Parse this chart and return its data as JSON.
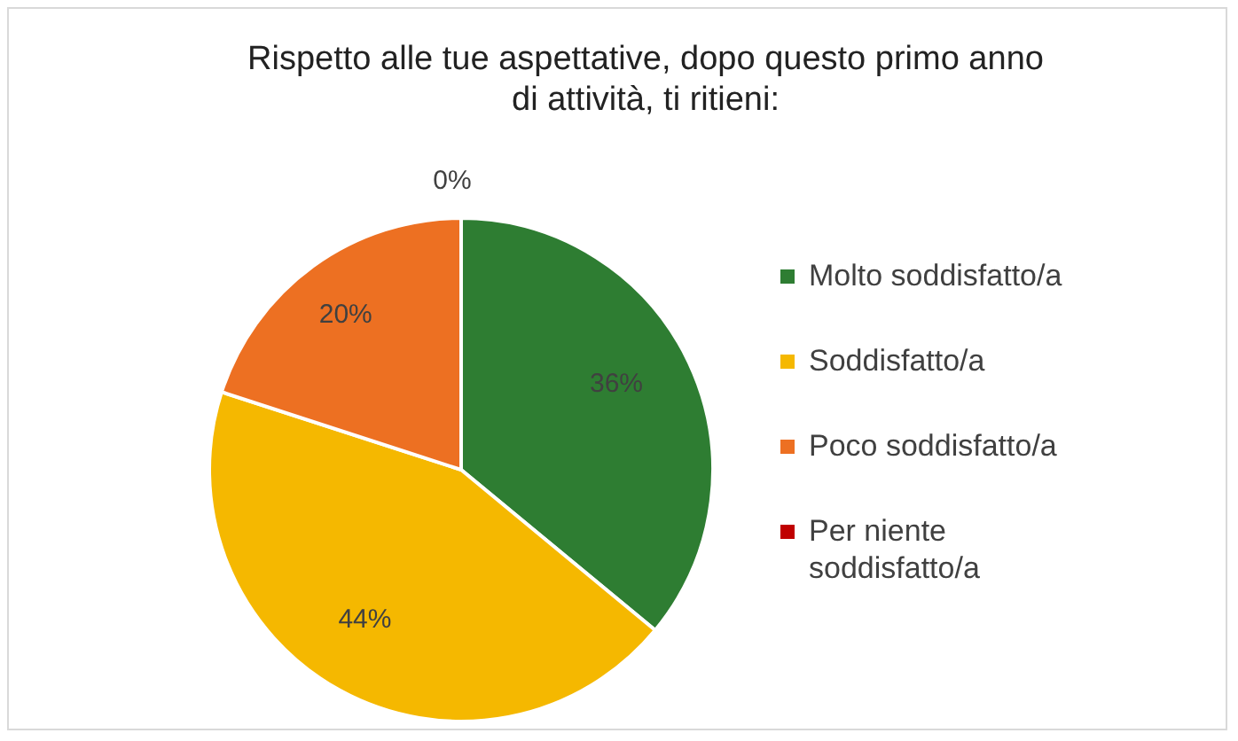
{
  "chart_data": {
    "type": "pie",
    "title": "Rispetto alle tue aspettative, dopo questo primo anno\ndi attività, ti ritieni:",
    "categories": [
      "Molto soddisfatto/a",
      "Soddisfatto/a",
      "Poco soddisfatto/a",
      "Per niente soddisfatto/a"
    ],
    "values": [
      36,
      44,
      20,
      0
    ],
    "value_labels": [
      "36%",
      "44%",
      "20%",
      "0%"
    ],
    "colors": [
      "#2e7d32",
      "#f5b800",
      "#ed7022",
      "#c00000"
    ],
    "legend": "right"
  }
}
